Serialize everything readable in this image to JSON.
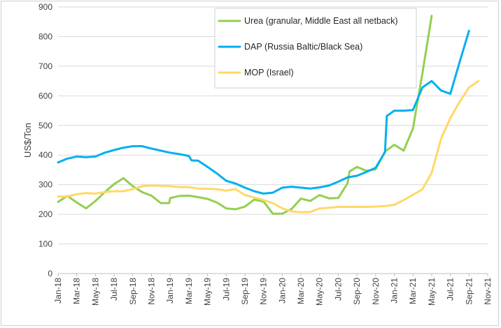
{
  "chart_data": {
    "type": "line",
    "title": "",
    "xlabel": "",
    "ylabel": "US$/Ton",
    "ylim": [
      0,
      900
    ],
    "yticks": [
      0,
      100,
      200,
      300,
      400,
      500,
      600,
      700,
      800,
      900
    ],
    "grid": true,
    "legend": "top-right",
    "x_tick_labels": [
      "Jan-18",
      "Mar-18",
      "May-18",
      "Jul-18",
      "Sep-18",
      "Nov-18",
      "Jan-19",
      "Mar-19",
      "May-19",
      "Jul-19",
      "Sep-19",
      "Nov-19",
      "Jan-20",
      "Mar-20",
      "May-20",
      "Jul-20",
      "Sep-20",
      "Nov-20",
      "Jan-21",
      "Mar-21",
      "May-21",
      "Jul-21",
      "Sep-21",
      "Nov-21"
    ],
    "series": [
      {
        "name": "Urea (granular, Middle East all netback)",
        "color": "#92d050",
        "points": [
          [
            0,
            242
          ],
          [
            1,
            262
          ],
          [
            2,
            240
          ],
          [
            3,
            220
          ],
          [
            4,
            245
          ],
          [
            5,
            275
          ],
          [
            6,
            302
          ],
          [
            7,
            322
          ],
          [
            8,
            295
          ],
          [
            9,
            275
          ],
          [
            10,
            263
          ],
          [
            11,
            238
          ],
          [
            11.9,
            238
          ],
          [
            12,
            255
          ],
          [
            13,
            262
          ],
          [
            14,
            263
          ],
          [
            15,
            258
          ],
          [
            16,
            252
          ],
          [
            17,
            240
          ],
          [
            18,
            220
          ],
          [
            19,
            217
          ],
          [
            20,
            226
          ],
          [
            21,
            250
          ],
          [
            22,
            243
          ],
          [
            23,
            202
          ],
          [
            24,
            202
          ],
          [
            25,
            218
          ],
          [
            26,
            253
          ],
          [
            27,
            245
          ],
          [
            28,
            265
          ],
          [
            29,
            254
          ],
          [
            30,
            255
          ],
          [
            31,
            305
          ],
          [
            31.2,
            345
          ],
          [
            32,
            360
          ],
          [
            33,
            347
          ],
          [
            34,
            352
          ],
          [
            35,
            412
          ],
          [
            36,
            435
          ],
          [
            37,
            415
          ],
          [
            38,
            490
          ],
          [
            39,
            675
          ],
          [
            40,
            870
          ]
        ]
      },
      {
        "name": "DAP (Russia Baltic/Black Sea)",
        "color": "#00b0f0",
        "points": [
          [
            0,
            375
          ],
          [
            1,
            388
          ],
          [
            2,
            395
          ],
          [
            3,
            393
          ],
          [
            4,
            395
          ],
          [
            5,
            408
          ],
          [
            6,
            417
          ],
          [
            7,
            425
          ],
          [
            8,
            430
          ],
          [
            9,
            430
          ],
          [
            10,
            422
          ],
          [
            11,
            415
          ],
          [
            12,
            408
          ],
          [
            13,
            403
          ],
          [
            14,
            397
          ],
          [
            14.3,
            382
          ],
          [
            15,
            381
          ],
          [
            16,
            360
          ],
          [
            17,
            338
          ],
          [
            18,
            313
          ],
          [
            19,
            304
          ],
          [
            20,
            290
          ],
          [
            21,
            278
          ],
          [
            22,
            270
          ],
          [
            23,
            273
          ],
          [
            24,
            290
          ],
          [
            25,
            293
          ],
          [
            26,
            290
          ],
          [
            27,
            287
          ],
          [
            28,
            291
          ],
          [
            29,
            297
          ],
          [
            30,
            310
          ],
          [
            31,
            325
          ],
          [
            32,
            330
          ],
          [
            33,
            343
          ],
          [
            34,
            357
          ],
          [
            35,
            410
          ],
          [
            35.2,
            532
          ],
          [
            36,
            550
          ],
          [
            37,
            550
          ],
          [
            38,
            552
          ],
          [
            39,
            628
          ],
          [
            40,
            650
          ],
          [
            41,
            618
          ],
          [
            42,
            607
          ],
          [
            43,
            715
          ],
          [
            44,
            820
          ]
        ]
      },
      {
        "name": "MOP (Israel)",
        "color": "#ffd966",
        "points": [
          [
            0,
            260
          ],
          [
            1,
            260
          ],
          [
            2,
            268
          ],
          [
            3,
            272
          ],
          [
            4,
            270
          ],
          [
            5,
            275
          ],
          [
            6,
            278
          ],
          [
            7,
            278
          ],
          [
            8,
            285
          ],
          [
            9,
            295
          ],
          [
            10,
            297
          ],
          [
            11,
            296
          ],
          [
            12,
            295
          ],
          [
            13,
            292
          ],
          [
            14,
            292
          ],
          [
            15,
            287
          ],
          [
            16,
            286
          ],
          [
            17,
            285
          ],
          [
            18,
            280
          ],
          [
            19,
            285
          ],
          [
            20,
            265
          ],
          [
            21,
            257
          ],
          [
            22,
            248
          ],
          [
            23,
            238
          ],
          [
            24,
            220
          ],
          [
            25,
            210
          ],
          [
            26,
            207
          ],
          [
            27,
            208
          ],
          [
            28,
            220
          ],
          [
            29,
            222
          ],
          [
            30,
            225
          ],
          [
            31,
            225
          ],
          [
            32,
            225
          ],
          [
            33,
            225
          ],
          [
            34,
            226
          ],
          [
            35,
            228
          ],
          [
            36,
            232
          ],
          [
            37,
            248
          ],
          [
            38,
            266
          ],
          [
            39,
            284
          ],
          [
            40,
            340
          ],
          [
            41,
            455
          ],
          [
            42,
            525
          ],
          [
            43,
            580
          ],
          [
            44,
            628
          ],
          [
            45,
            650
          ]
        ]
      }
    ]
  }
}
